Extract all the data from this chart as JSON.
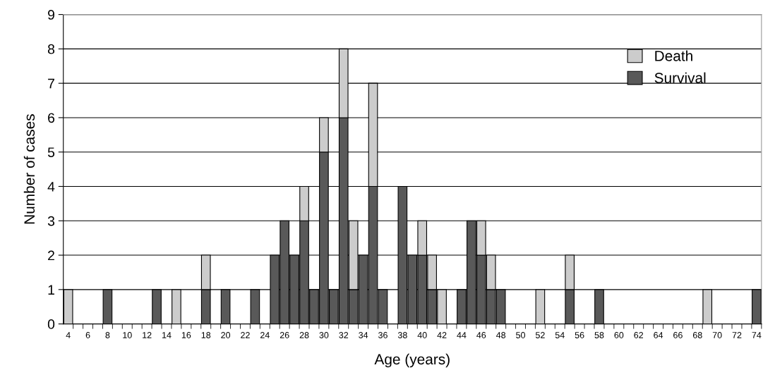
{
  "chart_data": {
    "type": "bar",
    "stacked": true,
    "xlabel": "Age (years)",
    "ylabel": "Number of cases",
    "categories": [
      "4",
      null,
      "6",
      null,
      "8",
      null,
      "10",
      null,
      "12",
      null,
      "14",
      null,
      "16",
      null,
      "18",
      null,
      "20",
      null,
      "22",
      null,
      "24",
      null,
      "26",
      null,
      "28",
      null,
      "30",
      null,
      "32",
      null,
      "34",
      null,
      "36",
      null,
      "38",
      null,
      "40",
      null,
      "42",
      null,
      "44",
      null,
      "46",
      null,
      "48",
      null,
      "50",
      null,
      "52",
      null,
      "54",
      null,
      "56",
      null,
      "58",
      null,
      "60",
      null,
      "62",
      null,
      "64",
      null,
      "66",
      null,
      "68",
      null,
      "70",
      null,
      "72",
      null,
      "74"
    ],
    "series": [
      {
        "name": "Survival",
        "color": "#595959",
        "values": [
          0,
          0,
          0,
          0,
          1,
          0,
          0,
          0,
          0,
          1,
          0,
          0,
          0,
          0,
          1,
          0,
          1,
          0,
          0,
          1,
          0,
          2,
          3,
          2,
          3,
          1,
          5,
          1,
          6,
          1,
          2,
          4,
          1,
          0,
          4,
          2,
          2,
          1,
          0,
          0,
          1,
          3,
          2,
          1,
          1,
          0,
          0,
          0,
          0,
          0,
          0,
          1,
          0,
          0,
          1,
          0,
          0,
          0,
          0,
          0,
          0,
          0,
          0,
          0,
          0,
          0,
          0,
          0,
          0,
          0,
          1
        ]
      },
      {
        "name": "Death",
        "color": "#cccccc",
        "values": [
          1,
          0,
          0,
          0,
          0,
          0,
          0,
          0,
          0,
          0,
          0,
          1,
          0,
          0,
          1,
          0,
          0,
          0,
          0,
          0,
          0,
          0,
          0,
          0,
          1,
          0,
          1,
          0,
          2,
          2,
          0,
          3,
          0,
          0,
          0,
          0,
          1,
          1,
          1,
          0,
          0,
          0,
          1,
          1,
          0,
          0,
          0,
          0,
          1,
          0,
          0,
          1,
          0,
          0,
          0,
          0,
          0,
          0,
          0,
          0,
          0,
          0,
          0,
          0,
          0,
          1,
          0,
          0,
          0,
          0,
          0
        ]
      }
    ],
    "ylim": [
      0,
      9
    ],
    "yticks": [
      0,
      1,
      2,
      3,
      4,
      5,
      6,
      7,
      8,
      9
    ],
    "grid": "y",
    "legend": "top right"
  }
}
